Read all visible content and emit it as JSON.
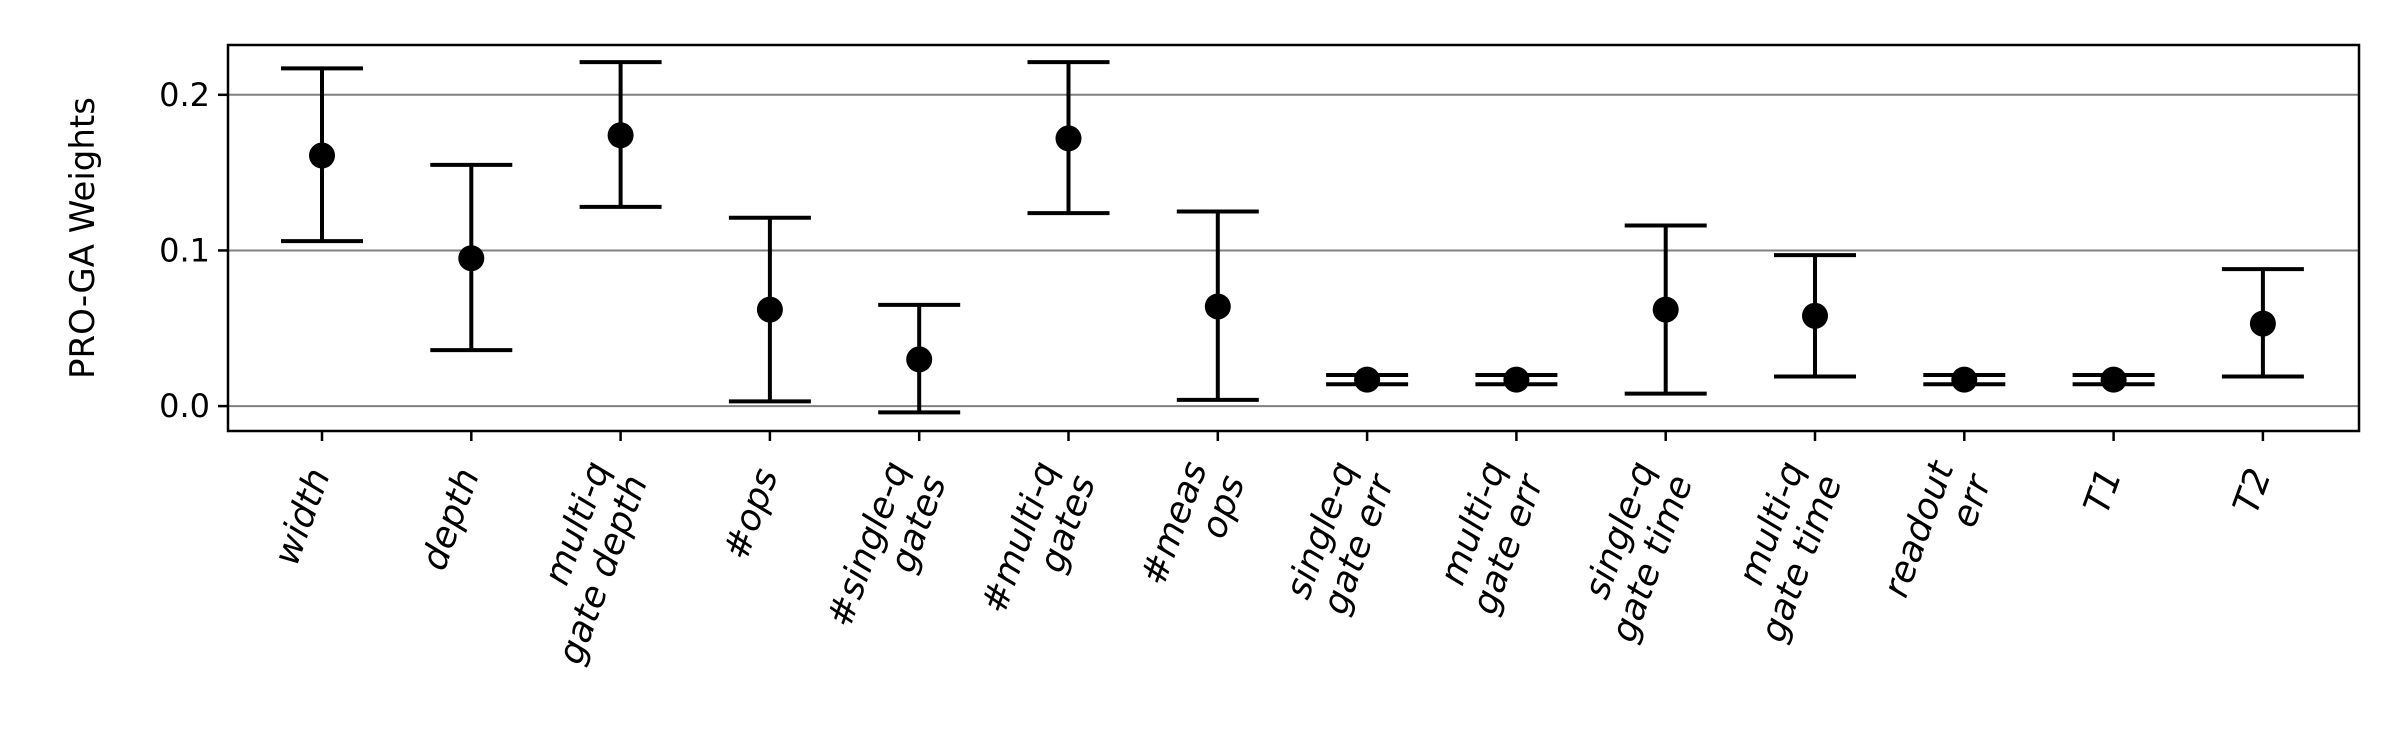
{
  "chart_data": {
    "type": "scatter",
    "title": "",
    "xlabel": "",
    "ylabel": "PRO-GA Weights",
    "categories": [
      [
        "width"
      ],
      [
        "depth"
      ],
      [
        "multi-q",
        "gate depth"
      ],
      [
        "#ops"
      ],
      [
        "#single-q",
        "gates"
      ],
      [
        "#multi-q",
        "gates"
      ],
      [
        "#meas",
        "ops"
      ],
      [
        "single-q",
        "gate err"
      ],
      [
        "multi-q",
        "gate err"
      ],
      [
        "single-q",
        "gate time"
      ],
      [
        "multi-q",
        "gate time"
      ],
      [
        "readout",
        "err"
      ],
      [
        "T1"
      ],
      [
        "T2"
      ]
    ],
    "values": [
      0.161,
      0.095,
      0.174,
      0.062,
      0.03,
      0.172,
      0.064,
      0.017,
      0.017,
      0.062,
      0.058,
      0.017,
      0.017,
      0.053
    ],
    "error_low": [
      0.106,
      0.036,
      0.128,
      0.003,
      -0.004,
      0.124,
      0.004,
      0.014,
      0.014,
      0.008,
      0.019,
      0.014,
      0.014,
      0.019
    ],
    "error_high": [
      0.217,
      0.155,
      0.221,
      0.121,
      0.065,
      0.221,
      0.125,
      0.02,
      0.02,
      0.116,
      0.097,
      0.02,
      0.02,
      0.088
    ],
    "yticks": [
      0.0,
      0.1,
      0.2
    ],
    "ytick_labels": [
      "0.0",
      "0.1",
      "0.2"
    ],
    "ylim": [
      -0.016,
      0.232
    ],
    "grid": "horizontal",
    "marker_color": "#000000",
    "grid_color": "#808080"
  }
}
